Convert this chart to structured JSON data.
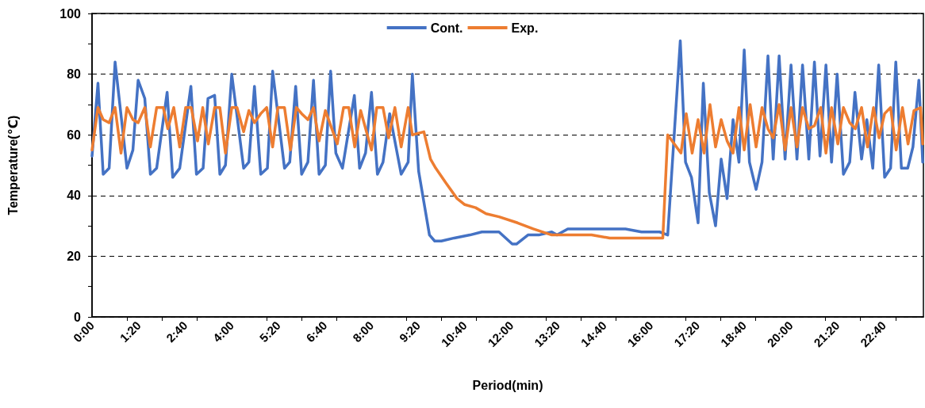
{
  "chart_data": {
    "type": "line",
    "xlabel": "Period(min)",
    "ylabel": "Temperature(℃)",
    "xlim": [
      0,
      23.8
    ],
    "ylim": [
      0,
      100
    ],
    "xticks": [
      {
        "value": 0,
        "label": "0:00"
      },
      {
        "value": 1,
        "label": null
      },
      {
        "value": 1.3333,
        "label": "1:20"
      },
      {
        "value": 2,
        "label": null
      },
      {
        "value": 2.6667,
        "label": "2:40"
      },
      {
        "value": 3,
        "label": null
      },
      {
        "value": 4,
        "label": "4:00"
      },
      {
        "value": 5,
        "label": null
      },
      {
        "value": 5.3333,
        "label": "5:20"
      },
      {
        "value": 6,
        "label": null
      },
      {
        "value": 6.6667,
        "label": "6:40"
      },
      {
        "value": 7,
        "label": null
      },
      {
        "value": 8,
        "label": "8:00"
      },
      {
        "value": 9,
        "label": null
      },
      {
        "value": 9.3333,
        "label": "9:20"
      },
      {
        "value": 10,
        "label": null
      },
      {
        "value": 10.6667,
        "label": "10:40"
      },
      {
        "value": 11,
        "label": null
      },
      {
        "value": 12,
        "label": "12:00"
      },
      {
        "value": 13,
        "label": null
      },
      {
        "value": 13.3333,
        "label": "13:20"
      },
      {
        "value": 14,
        "label": null
      },
      {
        "value": 14.6667,
        "label": "14:40"
      },
      {
        "value": 15,
        "label": null
      },
      {
        "value": 16,
        "label": "16:00"
      },
      {
        "value": 17,
        "label": null
      },
      {
        "value": 17.3333,
        "label": "17:20"
      },
      {
        "value": 18,
        "label": null
      },
      {
        "value": 18.6667,
        "label": "18:40"
      },
      {
        "value": 19,
        "label": null
      },
      {
        "value": 20,
        "label": "20:00"
      },
      {
        "value": 21,
        "label": null
      },
      {
        "value": 21.3333,
        "label": "21:20"
      },
      {
        "value": 22,
        "label": null
      },
      {
        "value": 22.6667,
        "label": "22:40"
      },
      {
        "value": 23,
        "label": null
      }
    ],
    "yticks": [
      0,
      {
        "value": 10,
        "label": null
      },
      20,
      {
        "value": 30,
        "label": null
      },
      40,
      {
        "value": 50,
        "label": null
      },
      60,
      {
        "value": 70,
        "label": null
      },
      80,
      {
        "value": 90,
        "label": null
      },
      100
    ],
    "grid": "y",
    "legend": "top",
    "marker": "none",
    "line_style": "solid",
    "series": [
      {
        "name": "Cont.",
        "color": "#4472c4",
        "x": [
          0,
          0.17,
          0.32,
          0.49,
          0.66,
          1.0,
          1.17,
          1.32,
          1.51,
          1.67,
          1.85,
          2.15,
          2.31,
          2.51,
          2.83,
          2.99,
          3.18,
          3.32,
          3.51,
          3.66,
          3.82,
          4.0,
          4.34,
          4.49,
          4.65,
          4.83,
          5.02,
          5.17,
          5.51,
          5.66,
          5.83,
          6.0,
          6.18,
          6.34,
          6.5,
          6.68,
          6.83,
          6.98,
          7.17,
          7.51,
          7.66,
          7.83,
          8.0,
          8.17,
          8.33,
          8.52,
          8.85,
          9.05,
          9.17,
          9.35,
          9.66,
          9.81,
          10.0,
          10.37,
          10.82,
          11.16,
          11.39,
          11.65,
          12.03,
          12.15,
          12.48,
          12.79,
          13.16,
          13.31,
          13.62,
          14.3,
          14.82,
          15.27,
          15.73,
          16.25,
          16.48,
          16.84,
          16.99,
          17.16,
          17.35,
          17.5,
          17.67,
          17.85,
          18.01,
          18.18,
          18.35,
          18.52,
          18.67,
          18.82,
          19.01,
          19.18,
          19.35,
          19.5,
          19.67,
          19.84,
          20.01,
          20.18,
          20.34,
          20.52,
          20.68,
          20.84,
          21.01,
          21.17,
          21.33,
          21.51,
          21.69,
          21.84,
          22.03,
          22.18,
          22.35,
          22.52,
          22.69,
          22.86,
          23.01,
          23.17,
          23.35,
          23.5,
          23.67,
          23.78
        ],
        "values": [
          53,
          77,
          47,
          49,
          84,
          49,
          55,
          78,
          72,
          47,
          49,
          74,
          46,
          49,
          76,
          47,
          49,
          72,
          73,
          47,
          50,
          80,
          49,
          51,
          76,
          47,
          49,
          81,
          49,
          51,
          76,
          47,
          51,
          78,
          47,
          50,
          81,
          54,
          49,
          73,
          49,
          54,
          74,
          47,
          51,
          67,
          47,
          51,
          80,
          48,
          27,
          25,
          25,
          26,
          27,
          28,
          28,
          28,
          24,
          24,
          27,
          27,
          28,
          27,
          29,
          29,
          29,
          29,
          28,
          28,
          27,
          91,
          51,
          46,
          31,
          77,
          41,
          30,
          52,
          39,
          65,
          51,
          88,
          51,
          42,
          51,
          86,
          52,
          86,
          52,
          83,
          52,
          83,
          52,
          84,
          53,
          83,
          51,
          80,
          47,
          51,
          74,
          52,
          65,
          49,
          83,
          46,
          49,
          84,
          49,
          49,
          56,
          78,
          51
        ]
      },
      {
        "name": "Exp.",
        "color": "#ed7d31",
        "x": [
          0,
          0.17,
          0.32,
          0.49,
          0.66,
          0.83,
          1.0,
          1.17,
          1.32,
          1.51,
          1.67,
          1.85,
          2.04,
          2.17,
          2.34,
          2.51,
          2.68,
          2.84,
          3.02,
          3.17,
          3.33,
          3.51,
          3.66,
          3.82,
          4.0,
          4.15,
          4.34,
          4.49,
          4.65,
          4.83,
          5.0,
          5.17,
          5.32,
          5.51,
          5.68,
          5.85,
          6.0,
          6.18,
          6.34,
          6.5,
          6.68,
          7.02,
          7.2,
          7.35,
          7.52,
          7.69,
          8.0,
          8.15,
          8.33,
          8.49,
          8.67,
          8.85,
          9.05,
          9.17,
          9.5,
          9.69,
          9.84,
          10.14,
          10.45,
          10.67,
          10.98,
          11.28,
          11.65,
          12.18,
          12.63,
          13.16,
          13.54,
          14.3,
          14.82,
          15.35,
          15.65,
          16.34,
          16.48,
          16.86,
          17.01,
          17.18,
          17.35,
          17.52,
          17.69,
          17.85,
          18.01,
          18.18,
          18.35,
          18.52,
          18.67,
          18.84,
          19.01,
          19.18,
          19.35,
          19.5,
          19.67,
          19.84,
          20.01,
          20.18,
          20.34,
          20.52,
          20.68,
          20.86,
          21.01,
          21.17,
          21.35,
          21.51,
          21.69,
          21.85,
          22.03,
          22.2,
          22.37,
          22.53,
          22.69,
          22.86,
          23.02,
          23.2,
          23.36,
          23.53,
          23.72,
          23.78
        ],
        "values": [
          55,
          69,
          65,
          64,
          69,
          54,
          69,
          65,
          64,
          69,
          56,
          69,
          69,
          62,
          69,
          56,
          69,
          69,
          58,
          69,
          57,
          69,
          69,
          54,
          69,
          69,
          61,
          68,
          64,
          67,
          69,
          56,
          69,
          69,
          55,
          69,
          67,
          65,
          69,
          58,
          68,
          57,
          69,
          69,
          56,
          68,
          55,
          69,
          69,
          59,
          69,
          56,
          69,
          60,
          61,
          52,
          49,
          44,
          39,
          37,
          36,
          34,
          33,
          31,
          29,
          27,
          27,
          27,
          26,
          26,
          26,
          26,
          60,
          54,
          67,
          54,
          65,
          54,
          70,
          56,
          65,
          58,
          54,
          69,
          55,
          70,
          56,
          69,
          62,
          59,
          70,
          55,
          69,
          56,
          69,
          62,
          63,
          69,
          54,
          69,
          57,
          69,
          64,
          62,
          69,
          56,
          69,
          59,
          67,
          69,
          55,
          69,
          57,
          68,
          69,
          57
        ]
      }
    ]
  }
}
